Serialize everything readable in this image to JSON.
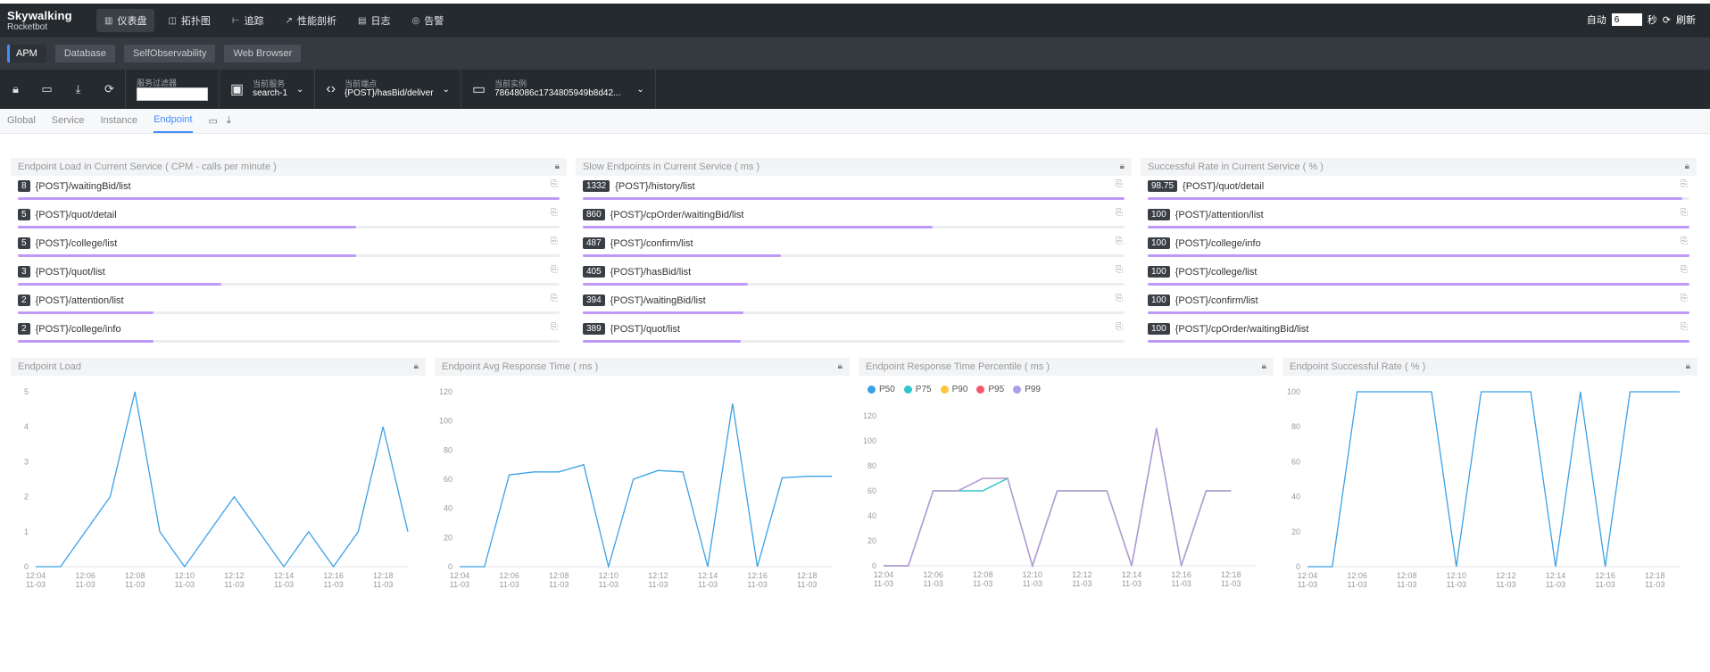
{
  "logo": {
    "name": "Skywalking",
    "sub": "Rocketbot"
  },
  "nav": [
    {
      "label": "仪表盘",
      "icon": "dashboard-icon",
      "glyph": "▥",
      "active": true
    },
    {
      "label": "拓扑图",
      "icon": "topology-icon",
      "glyph": "◫",
      "active": false
    },
    {
      "label": "追踪",
      "icon": "trace-icon",
      "glyph": "⊢",
      "active": false
    },
    {
      "label": "性能剖析",
      "icon": "profile-icon",
      "glyph": "↗",
      "active": false
    },
    {
      "label": "日志",
      "icon": "log-icon",
      "glyph": "▤",
      "active": false
    },
    {
      "label": "告警",
      "icon": "alarm-icon",
      "glyph": "◎",
      "active": false
    }
  ],
  "auto": {
    "label": "自动",
    "value": "6",
    "unit": "秒",
    "refresh": "刷新"
  },
  "subtabs": [
    {
      "label": "APM",
      "active": true
    },
    {
      "label": "Database",
      "active": false
    },
    {
      "label": "SelfObservability",
      "active": false
    },
    {
      "label": "Web Browser",
      "active": false
    }
  ],
  "toolbar": {
    "filter_label": "服务过滤器",
    "service_label": "当前服务",
    "service_value": "search-1",
    "endpoint_label": "当前端点",
    "endpoint_value": "{POST}/hasBid/deliver",
    "instance_label": "当前实例",
    "instance_value": "78648086c1734805949b8d42..."
  },
  "tabs": [
    "Global",
    "Service",
    "Instance",
    "Endpoint"
  ],
  "active_tab": "Endpoint",
  "top_panels": [
    {
      "title": "Endpoint Load in Current Service ( CPM - calls per minute )",
      "rows": [
        {
          "value": "8",
          "name": "{POST}/waitingBid/list",
          "fill": 1.0
        },
        {
          "value": "5",
          "name": "{POST}/quot/detail",
          "fill": 0.625
        },
        {
          "value": "5",
          "name": "{POST}/college/list",
          "fill": 0.625
        },
        {
          "value": "3",
          "name": "{POST}/quot/list",
          "fill": 0.375
        },
        {
          "value": "2",
          "name": "{POST}/attention/list",
          "fill": 0.25
        },
        {
          "value": "2",
          "name": "{POST}/college/info",
          "fill": 0.25
        }
      ]
    },
    {
      "title": "Slow Endpoints in Current Service ( ms )",
      "rows": [
        {
          "value": "1332",
          "name": "{POST}/history/list",
          "fill": 1.0
        },
        {
          "value": "860",
          "name": "{POST}/cpOrder/waitingBid/list",
          "fill": 0.646
        },
        {
          "value": "487",
          "name": "{POST}/confirm/list",
          "fill": 0.366
        },
        {
          "value": "405",
          "name": "{POST}/hasBid/list",
          "fill": 0.304
        },
        {
          "value": "394",
          "name": "{POST}/waitingBid/list",
          "fill": 0.296
        },
        {
          "value": "389",
          "name": "{POST}/quot/list",
          "fill": 0.292
        }
      ]
    },
    {
      "title": "Successful Rate in Current Service ( % )",
      "rows": [
        {
          "value": "98.75",
          "name": "{POST}/quot/detail",
          "fill": 0.9875
        },
        {
          "value": "100",
          "name": "{POST}/attention/list",
          "fill": 1.0
        },
        {
          "value": "100",
          "name": "{POST}/college/info",
          "fill": 1.0
        },
        {
          "value": "100",
          "name": "{POST}/college/list",
          "fill": 1.0
        },
        {
          "value": "100",
          "name": "{POST}/confirm/list",
          "fill": 1.0
        },
        {
          "value": "100",
          "name": "{POST}/cpOrder/waitingBid/list",
          "fill": 1.0
        }
      ]
    }
  ],
  "chart_data": [
    {
      "type": "line",
      "title": "Endpoint Load",
      "x": [
        "12:04\n11-03",
        "12:05",
        "12:06\n11-03",
        "12:07",
        "12:08\n11-03",
        "12:09",
        "12:10\n11-03",
        "12:11",
        "12:12\n11-03",
        "12:13",
        "12:14\n11-03",
        "12:15",
        "12:16\n11-03",
        "12:17",
        "12:18\n11-03",
        "12:19"
      ],
      "yticks": [
        0,
        1,
        2,
        3,
        4,
        5
      ],
      "ylim": [
        0,
        5
      ],
      "series": [
        {
          "color": "#3aa1e6",
          "values": [
            0,
            0,
            1,
            2,
            5,
            1,
            0,
            1,
            2,
            1,
            0,
            1,
            0,
            1,
            4,
            1
          ]
        }
      ]
    },
    {
      "type": "line",
      "title": "Endpoint Avg Response Time ( ms )",
      "x": [
        "12:04\n11-03",
        "12:05",
        "12:06\n11-03",
        "12:07",
        "12:08\n11-03",
        "12:09",
        "12:10\n11-03",
        "12:11",
        "12:12\n11-03",
        "12:13",
        "12:14\n11-03",
        "12:15",
        "12:16\n11-03",
        "12:17",
        "12:18\n11-03",
        "12:19"
      ],
      "yticks": [
        0,
        20,
        40,
        60,
        80,
        100,
        120
      ],
      "ylim": [
        0,
        120
      ],
      "series": [
        {
          "color": "#3aa1e6",
          "values": [
            0,
            0,
            63,
            65,
            65,
            70,
            0,
            60,
            66,
            65,
            0,
            112,
            0,
            61,
            62,
            62
          ]
        }
      ]
    },
    {
      "type": "line",
      "title": "Endpoint Response Time Percentile ( ms )",
      "x": [
        "12:04\n11-03",
        "12:05",
        "12:06\n11-03",
        "12:07",
        "12:08\n11-03",
        "12:09",
        "12:10\n11-03",
        "12:11",
        "12:12\n11-03",
        "12:13",
        "12:14\n11-03",
        "12:15",
        "12:16\n11-03",
        "12:17",
        "12:18\n11-03",
        "12:19"
      ],
      "yticks": [
        0,
        20,
        40,
        60,
        80,
        100,
        120
      ],
      "ylim": [
        0,
        130
      ],
      "series": [
        {
          "name": "P50",
          "color": "#3aa1e6",
          "values": [
            0,
            0,
            60,
            60,
            60,
            70,
            0,
            60,
            60,
            60,
            0,
            110,
            0,
            60,
            60,
            null
          ]
        },
        {
          "name": "P75",
          "color": "#2ec7c9",
          "values": [
            0,
            0,
            60,
            60,
            60,
            70,
            0,
            60,
            60,
            60,
            0,
            110,
            0,
            60,
            60,
            null
          ]
        },
        {
          "name": "P90",
          "color": "#ffc53d",
          "values": [
            0,
            0,
            60,
            60,
            70,
            70,
            0,
            60,
            60,
            60,
            0,
            110,
            0,
            60,
            60,
            null
          ]
        },
        {
          "name": "P95",
          "color": "#f5586b",
          "values": [
            0,
            0,
            60,
            60,
            70,
            70,
            0,
            60,
            60,
            60,
            0,
            110,
            0,
            60,
            60,
            null
          ]
        },
        {
          "name": "P99",
          "color": "#a99ee8",
          "values": [
            0,
            0,
            60,
            60,
            70,
            70,
            0,
            60,
            60,
            60,
            0,
            110,
            0,
            60,
            60,
            null
          ]
        }
      ]
    },
    {
      "type": "line",
      "title": "Endpoint Successful Rate ( % )",
      "x": [
        "12:04\n11-03",
        "12:05",
        "12:06\n11-03",
        "12:07",
        "12:08\n11-03",
        "12:09",
        "12:10\n11-03",
        "12:11",
        "12:12\n11-03",
        "12:13",
        "12:14\n11-03",
        "12:15",
        "12:16\n11-03",
        "12:17",
        "12:18\n11-03",
        "12:19"
      ],
      "yticks": [
        0,
        20,
        40,
        60,
        80,
        100
      ],
      "ylim": [
        0,
        100
      ],
      "series": [
        {
          "color": "#3aa1e6",
          "values": [
            0,
            0,
            100,
            100,
            100,
            100,
            0,
            100,
            100,
            100,
            0,
            100,
            0,
            100,
            100,
            100
          ]
        }
      ]
    }
  ],
  "colors": {
    "nav_bg": "#252a2f",
    "accent": "#448dfe",
    "bar_fill": "#bf99f8",
    "line": "#3aa1e6"
  }
}
